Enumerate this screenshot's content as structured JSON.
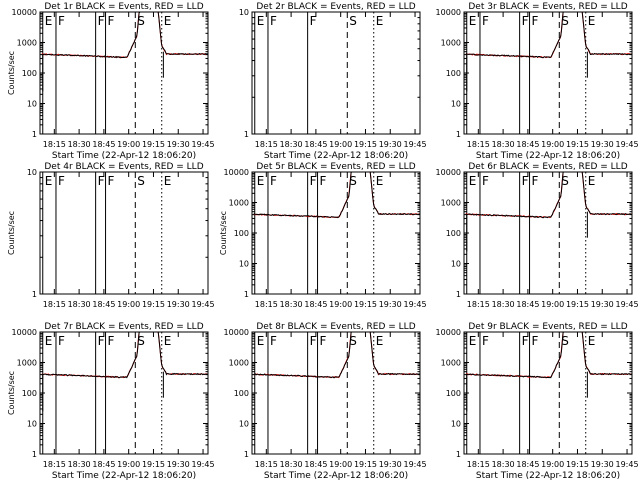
{
  "figure": {
    "colors": {
      "events": "#000000",
      "lld": "#ff0000",
      "axes": "#000000"
    }
  },
  "chart_data": [
    {
      "type": "line",
      "title": "Det 1r BLACK = Events, RED = LLD",
      "ylabel": "Counts/sec",
      "xlabel": "Start Time (22-Apr-12 18:06:20)",
      "x_tick_labels": [
        "18:15",
        "18:30",
        "18:45",
        "19:00",
        "19:15",
        "19:30",
        "19:45"
      ],
      "y_tick_labels": [
        "1",
        "10",
        "100",
        "1000",
        "10000"
      ],
      "y_scale": "log",
      "ylim": [
        1,
        10000
      ],
      "xlim": [
        "18:06:20",
        "19:48:00"
      ],
      "has_data": true,
      "spike": true,
      "dip": true,
      "markers": [
        {
          "label": "E",
          "x": "18:08",
          "style": "solid"
        },
        {
          "label": "F",
          "x": "18:16",
          "style": "solid"
        },
        {
          "label": "F",
          "x": "18:40",
          "style": "solid"
        },
        {
          "label": "F",
          "x": "18:46",
          "style": "solid"
        },
        {
          "label": "S",
          "x": "19:04",
          "style": "dashed"
        },
        {
          "label": "E",
          "x": "19:20",
          "style": "dotted"
        }
      ],
      "series": [
        {
          "name": "BLACK = Events"
        },
        {
          "name": "RED = LLD"
        }
      ]
    },
    {
      "type": "line",
      "title": "Det 2r BLACK = Events, RED = LLD",
      "ylabel": "",
      "xlabel": "Start Time (22-Apr-12 18:06:20)",
      "x_tick_labels": [
        "18:15",
        "18:30",
        "18:45",
        "19:00",
        "19:15",
        "19:30",
        "19:45"
      ],
      "y_tick_labels": [
        "1",
        "10"
      ],
      "y_scale": "log",
      "ylim": [
        1,
        10
      ],
      "xlim": [
        "18:06:20",
        "19:48:00"
      ],
      "has_data": false,
      "markers": [
        {
          "label": "E",
          "x": "18:08",
          "style": "solid"
        },
        {
          "label": "F",
          "x": "18:16",
          "style": "solid"
        },
        {
          "label": "F",
          "x": "18:40",
          "style": "solid"
        },
        {
          "label": "S",
          "x": "19:04",
          "style": "dashed"
        },
        {
          "label": "E",
          "x": "19:20",
          "style": "dotted"
        }
      ],
      "series": [
        {
          "name": "BLACK = Events"
        },
        {
          "name": "RED = LLD"
        }
      ]
    },
    {
      "type": "line",
      "title": "Det 3r BLACK = Events, RED = LLD",
      "ylabel": "",
      "xlabel": "Start Time (22-Apr-12 18:06:20)",
      "x_tick_labels": [
        "18:15",
        "18:30",
        "18:45",
        "19:00",
        "19:15",
        "19:30",
        "19:45"
      ],
      "y_tick_labels": [
        "1",
        "10",
        "100",
        "1000",
        "10000"
      ],
      "y_scale": "log",
      "ylim": [
        1,
        10000
      ],
      "xlim": [
        "18:06:20",
        "19:48:00"
      ],
      "has_data": true,
      "spike": true,
      "dip": true,
      "markers": [
        {
          "label": "E",
          "x": "18:08",
          "style": "solid"
        },
        {
          "label": "F",
          "x": "18:16",
          "style": "solid"
        },
        {
          "label": "F",
          "x": "18:40",
          "style": "solid"
        },
        {
          "label": "F",
          "x": "18:46",
          "style": "solid"
        },
        {
          "label": "S",
          "x": "19:04",
          "style": "dashed"
        },
        {
          "label": "E",
          "x": "19:20",
          "style": "dotted"
        }
      ],
      "series": [
        {
          "name": "BLACK = Events"
        },
        {
          "name": "RED = LLD"
        }
      ]
    },
    {
      "type": "line",
      "title": "Det 4r BLACK = Events, RED = LLD",
      "ylabel": "Counts/sec",
      "xlabel": "",
      "x_tick_labels": [
        "18:15",
        "18:30",
        "18:45",
        "19:00",
        "19:15",
        "19:30",
        "19:45"
      ],
      "y_tick_labels": [
        "1",
        "10"
      ],
      "y_scale": "log",
      "ylim": [
        1,
        10
      ],
      "xlim": [
        "18:06:20",
        "19:48:00"
      ],
      "has_data": false,
      "markers": [
        {
          "label": "E",
          "x": "18:08",
          "style": "solid"
        },
        {
          "label": "F",
          "x": "18:16",
          "style": "solid"
        },
        {
          "label": "F",
          "x": "18:40",
          "style": "solid"
        },
        {
          "label": "F",
          "x": "18:46",
          "style": "solid"
        },
        {
          "label": "S",
          "x": "19:04",
          "style": "dashed"
        },
        {
          "label": "E",
          "x": "19:20",
          "style": "dotted"
        }
      ],
      "series": [
        {
          "name": "BLACK = Events"
        },
        {
          "name": "RED = LLD"
        }
      ]
    },
    {
      "type": "line",
      "title": "Det 5r BLACK = Events, RED = LLD",
      "ylabel": "Counts/sec",
      "xlabel": "",
      "x_tick_labels": [
        "18:15",
        "18:30",
        "18:45",
        "19:00",
        "19:15",
        "19:30",
        "19:45"
      ],
      "y_tick_labels": [
        "1",
        "10",
        "100",
        "1000",
        "10000"
      ],
      "y_scale": "log",
      "ylim": [
        1,
        10000
      ],
      "xlim": [
        "18:06:20",
        "19:48:00"
      ],
      "has_data": true,
      "spike": true,
      "dip": false,
      "markers": [
        {
          "label": "E",
          "x": "18:08",
          "style": "solid"
        },
        {
          "label": "F",
          "x": "18:16",
          "style": "solid"
        },
        {
          "label": "F",
          "x": "18:40",
          "style": "solid"
        },
        {
          "label": "F",
          "x": "18:46",
          "style": "solid"
        },
        {
          "label": "S",
          "x": "19:04",
          "style": "dashed"
        },
        {
          "label": "E",
          "x": "19:20",
          "style": "dotted"
        }
      ],
      "series": [
        {
          "name": "BLACK = Events"
        },
        {
          "name": "RED = LLD"
        }
      ]
    },
    {
      "type": "line",
      "title": "Det 6r BLACK = Events, RED = LLD",
      "ylabel": "",
      "xlabel": "",
      "x_tick_labels": [
        "18:15",
        "18:30",
        "18:45",
        "19:00",
        "19:15",
        "19:30",
        "19:45"
      ],
      "y_tick_labels": [
        "1",
        "10",
        "100",
        "1000",
        "10000"
      ],
      "y_scale": "log",
      "ylim": [
        1,
        10000
      ],
      "xlim": [
        "18:06:20",
        "19:48:00"
      ],
      "has_data": true,
      "spike": true,
      "dip": true,
      "markers": [
        {
          "label": "E",
          "x": "18:08",
          "style": "solid"
        },
        {
          "label": "F",
          "x": "18:16",
          "style": "solid"
        },
        {
          "label": "F",
          "x": "18:40",
          "style": "solid"
        },
        {
          "label": "F",
          "x": "18:46",
          "style": "solid"
        },
        {
          "label": "S",
          "x": "19:04",
          "style": "dashed"
        },
        {
          "label": "E",
          "x": "19:20",
          "style": "dotted"
        }
      ],
      "series": [
        {
          "name": "BLACK = Events"
        },
        {
          "name": "RED = LLD"
        }
      ]
    },
    {
      "type": "line",
      "title": "Det 7r BLACK = Events, RED = LLD",
      "ylabel": "Counts/sec",
      "xlabel": "Start Time (22-Apr-12 18:06:20)",
      "x_tick_labels": [
        "18:15",
        "18:30",
        "18:45",
        "19:00",
        "19:15",
        "19:30",
        "19:45"
      ],
      "y_tick_labels": [
        "1",
        "10",
        "100",
        "1000",
        "10000"
      ],
      "y_scale": "log",
      "ylim": [
        1,
        10000
      ],
      "xlim": [
        "18:06:20",
        "19:48:00"
      ],
      "has_data": true,
      "spike": true,
      "dip": true,
      "markers": [
        {
          "label": "E",
          "x": "18:08",
          "style": "solid"
        },
        {
          "label": "F",
          "x": "18:16",
          "style": "solid"
        },
        {
          "label": "F",
          "x": "18:40",
          "style": "solid"
        },
        {
          "label": "F",
          "x": "18:46",
          "style": "solid"
        },
        {
          "label": "S",
          "x": "19:04",
          "style": "dashed"
        },
        {
          "label": "E",
          "x": "19:20",
          "style": "dotted"
        }
      ],
      "series": [
        {
          "name": "BLACK = Events"
        },
        {
          "name": "RED = LLD"
        }
      ]
    },
    {
      "type": "line",
      "title": "Det 8r BLACK = Events, RED = LLD",
      "ylabel": "",
      "xlabel": "Start Time (22-Apr-12 18:06:20)",
      "x_tick_labels": [
        "18:15",
        "18:30",
        "18:45",
        "19:00",
        "19:15",
        "19:30",
        "19:45"
      ],
      "y_tick_labels": [
        "1",
        "10",
        "100",
        "1000",
        "10000"
      ],
      "y_scale": "log",
      "ylim": [
        1,
        10000
      ],
      "xlim": [
        "18:06:20",
        "19:48:00"
      ],
      "has_data": true,
      "spike": true,
      "dip": false,
      "markers": [
        {
          "label": "E",
          "x": "18:08",
          "style": "solid"
        },
        {
          "label": "F",
          "x": "18:16",
          "style": "solid"
        },
        {
          "label": "F",
          "x": "18:40",
          "style": "solid"
        },
        {
          "label": "F",
          "x": "18:46",
          "style": "solid"
        },
        {
          "label": "S",
          "x": "19:04",
          "style": "dashed"
        },
        {
          "label": "E",
          "x": "19:20",
          "style": "dotted"
        }
      ],
      "series": [
        {
          "name": "BLACK = Events"
        },
        {
          "name": "RED = LLD"
        }
      ]
    },
    {
      "type": "line",
      "title": "Det 9r BLACK = Events, RED = LLD",
      "ylabel": "",
      "xlabel": "Start Time (22-Apr-12 18:06:20)",
      "x_tick_labels": [
        "18:15",
        "18:30",
        "18:45",
        "19:00",
        "19:15",
        "19:30",
        "19:45"
      ],
      "y_tick_labels": [
        "1",
        "10",
        "100",
        "1000",
        "10000"
      ],
      "y_scale": "log",
      "ylim": [
        1,
        10000
      ],
      "xlim": [
        "18:06:20",
        "19:48:00"
      ],
      "has_data": true,
      "spike": true,
      "dip": true,
      "markers": [
        {
          "label": "E",
          "x": "18:08",
          "style": "solid"
        },
        {
          "label": "F",
          "x": "18:16",
          "style": "solid"
        },
        {
          "label": "F",
          "x": "18:40",
          "style": "solid"
        },
        {
          "label": "F",
          "x": "18:46",
          "style": "solid"
        },
        {
          "label": "S",
          "x": "19:04",
          "style": "dashed"
        },
        {
          "label": "E",
          "x": "19:20",
          "style": "dotted"
        }
      ],
      "series": [
        {
          "name": "BLACK = Events"
        },
        {
          "name": "RED = LLD"
        }
      ]
    }
  ]
}
